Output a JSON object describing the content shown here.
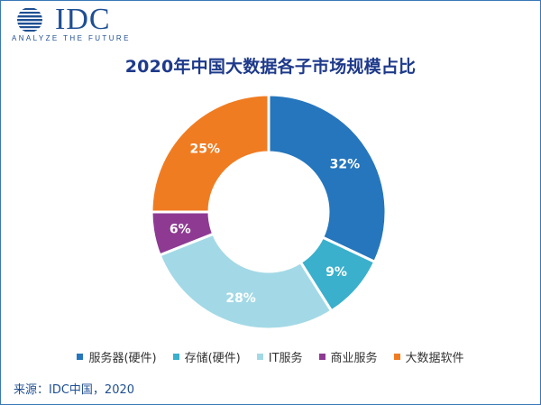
{
  "logo": {
    "wordmark": "IDC",
    "tagline": "ANALYZE THE FUTURE"
  },
  "chart_data": {
    "type": "pie",
    "title": "2020年中国大数据各子市场规模占比",
    "donut": true,
    "start_angle_deg": 0,
    "direction": "clockwise",
    "categories": [
      "服务器(硬件)",
      "存储(硬件)",
      "IT服务",
      "商业服务",
      "大数据软件"
    ],
    "values": [
      32,
      9,
      28,
      6,
      25
    ],
    "value_labels": [
      "32%",
      "9%",
      "28%",
      "6%",
      "25%"
    ],
    "colors": [
      "#2576bd",
      "#3ab0cc",
      "#a3d9e6",
      "#8e3a93",
      "#f07c22"
    ],
    "legend_position": "bottom"
  },
  "source": "来源：IDC中国，2020"
}
